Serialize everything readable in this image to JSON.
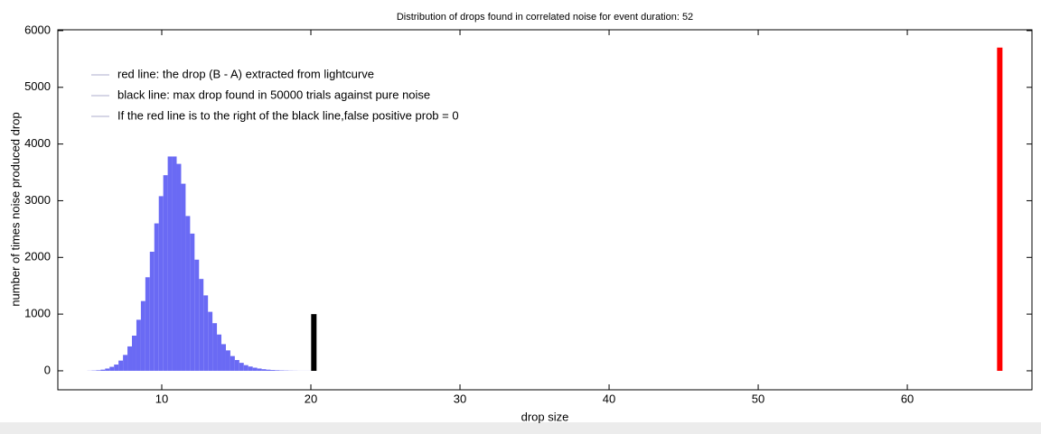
{
  "chart_data": {
    "type": "histogram",
    "title": "Distribution of drops found in correlated noise for event duration: 52",
    "xlabel": "drop size",
    "ylabel": "number of times noise produced drop",
    "bins": [
      5.0,
      5.3,
      5.6,
      5.9,
      6.2,
      6.5,
      6.8,
      7.1,
      7.4,
      7.7,
      8.0,
      8.3,
      8.6,
      8.9,
      9.2,
      9.5,
      9.8,
      10.1,
      10.4,
      10.7,
      11.0,
      11.3,
      11.6,
      11.9,
      12.2,
      12.5,
      12.8,
      13.1,
      13.4,
      13.7,
      14.0,
      14.3,
      14.6,
      14.9,
      15.2,
      15.5,
      15.8,
      16.1,
      16.4,
      16.7,
      17.0,
      17.3,
      17.6,
      17.9,
      18.2,
      18.5,
      18.8,
      19.1,
      19.4,
      19.7,
      20.0
    ],
    "counts": [
      2,
      5,
      10,
      20,
      40,
      70,
      110,
      180,
      280,
      430,
      620,
      900,
      1230,
      1650,
      2100,
      2600,
      3080,
      3450,
      3780,
      3780,
      3650,
      3300,
      2730,
      2420,
      1960,
      1620,
      1330,
      1040,
      840,
      640,
      470,
      360,
      260,
      190,
      140,
      100,
      75,
      55,
      40,
      28,
      20,
      14,
      10,
      7,
      5,
      3,
      2,
      1,
      1,
      1
    ],
    "color": "#6a6af4",
    "vlines": [
      {
        "x": 20.2,
        "ymin": 0,
        "ymax": 1000,
        "color": "#000000"
      },
      {
        "x": 66.2,
        "ymin": 0,
        "ymax": 5700,
        "color": "#ff0000"
      }
    ],
    "legend": [
      {
        "label": "red line: the drop (B - A) extracted from lightcurve",
        "color": "#c9c9dd"
      },
      {
        "label": "black line: max drop found in 50000 trials against pure noise",
        "color": "#c9c9dd"
      },
      {
        "label": "If the red line is to the right of the black line,false positive prob = 0",
        "color": "#c9c9dd"
      }
    ],
    "xlim": [
      3.03,
      68.36
    ],
    "ylim": [
      -335,
      6015
    ],
    "xticks": [
      10,
      20,
      30,
      40,
      50,
      60
    ],
    "yticks": [
      0,
      1000,
      2000,
      3000,
      4000,
      5000,
      6000
    ]
  }
}
